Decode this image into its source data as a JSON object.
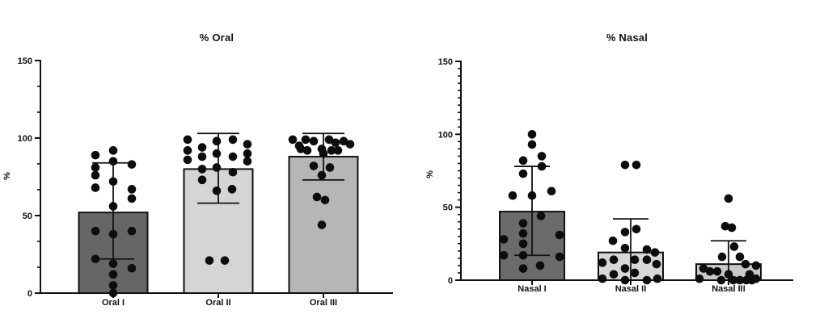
{
  "figure": {
    "background": "#ffffff",
    "axis_color": "#111111",
    "point_color": "#0d0d0d"
  },
  "chart_data": [
    {
      "type": "bar",
      "subtype": "bar-with-scatter-and-sd-error-bars",
      "title": "% Oral",
      "xlabel": "",
      "ylabel": "%",
      "ylim": [
        0,
        150
      ],
      "yticks": [
        0,
        50,
        100,
        150
      ],
      "minor_ticks_per_interval": 2,
      "grid": false,
      "legend": null,
      "categories": [
        "Oral I",
        "Oral II",
        "Oral III"
      ],
      "bar_fill_colors": [
        "#666666",
        "#d5d5d5",
        "#b6b6b6"
      ],
      "bars": [
        {
          "label": "Oral I",
          "mean": 52,
          "err_low": 22,
          "err_high": 84,
          "points": [
            [
              -22,
              89
            ],
            [
              0,
              92
            ],
            [
              -22,
              81
            ],
            [
              0,
              85
            ],
            [
              23,
              83
            ],
            [
              -22,
              76
            ],
            [
              -22,
              68
            ],
            [
              0,
              72
            ],
            [
              23,
              67
            ],
            [
              23,
              61
            ],
            [
              0,
              56
            ],
            [
              -22,
              40
            ],
            [
              0,
              38
            ],
            [
              23,
              40
            ],
            [
              -22,
              22
            ],
            [
              0,
              19
            ],
            [
              23,
              16
            ],
            [
              0,
              12
            ],
            [
              0,
              5
            ],
            [
              0,
              0
            ]
          ]
        },
        {
          "label": "Oral II",
          "mean": 80,
          "err_low": 58,
          "err_high": 103,
          "points": [
            [
              -38,
              99
            ],
            [
              -38,
              92
            ],
            [
              -38,
              86
            ],
            [
              -20,
              94
            ],
            [
              -20,
              88
            ],
            [
              -20,
              80
            ],
            [
              -2,
              98
            ],
            [
              -2,
              90
            ],
            [
              -2,
              81
            ],
            [
              18,
              99
            ],
            [
              18,
              88
            ],
            [
              18,
              78
            ],
            [
              36,
              96
            ],
            [
              36,
              90
            ],
            [
              36,
              85
            ],
            [
              -20,
              73
            ],
            [
              -2,
              66
            ],
            [
              17,
              67
            ],
            [
              -11,
              21
            ],
            [
              8,
              21
            ]
          ]
        },
        {
          "label": "Oral III",
          "mean": 88,
          "err_low": 73,
          "err_high": 103,
          "points": [
            [
              -38,
              99
            ],
            [
              -30,
              95
            ],
            [
              -22,
              99
            ],
            [
              -12,
              98
            ],
            [
              -2,
              93
            ],
            [
              7,
              99
            ],
            [
              15,
              97
            ],
            [
              25,
              98
            ],
            [
              33,
              96
            ],
            [
              -20,
              92
            ],
            [
              0,
              90
            ],
            [
              10,
              92
            ],
            [
              18,
              92
            ],
            [
              -28,
              93
            ],
            [
              -12,
              82
            ],
            [
              8,
              81
            ],
            [
              -2,
              76
            ],
            [
              -8,
              62
            ],
            [
              2,
              60
            ],
            [
              -2,
              44
            ]
          ]
        }
      ]
    },
    {
      "type": "bar",
      "subtype": "bar-with-scatter-and-sd-error-bars",
      "title": "% Nasal",
      "xlabel": "",
      "ylabel": "%",
      "ylim": [
        0,
        150
      ],
      "yticks": [
        0,
        50,
        100,
        150
      ],
      "minor_ticks_per_interval": 9,
      "grid": false,
      "legend": null,
      "categories": [
        "Nasal I",
        "Nasal II",
        "Nasal III"
      ],
      "bar_fill_colors": [
        "#6b6b6b",
        "#d8d8d8",
        "#c9c9c9"
      ],
      "bars": [
        {
          "label": "Nasal I",
          "mean": 47,
          "err_low": 17,
          "err_high": 78,
          "points": [
            [
              0,
              100
            ],
            [
              0,
              93
            ],
            [
              12,
              85
            ],
            [
              -11,
              82
            ],
            [
              12,
              78
            ],
            [
              -11,
              73
            ],
            [
              -24,
              58
            ],
            [
              0,
              58
            ],
            [
              24,
              61
            ],
            [
              11,
              44
            ],
            [
              -11,
              39
            ],
            [
              -11,
              32
            ],
            [
              34,
              31
            ],
            [
              -35,
              28
            ],
            [
              -11,
              25
            ],
            [
              -35,
              17
            ],
            [
              -11,
              17
            ],
            [
              34,
              16
            ],
            [
              -11,
              8
            ],
            [
              10,
              10
            ]
          ]
        },
        {
          "label": "Nasal II",
          "mean": 19,
          "err_low": null,
          "err_high": 42,
          "points": [
            [
              -7,
              79
            ],
            [
              7,
              79
            ],
            [
              -7,
              33
            ],
            [
              7,
              35
            ],
            [
              -22,
              27
            ],
            [
              -7,
              22
            ],
            [
              20,
              21
            ],
            [
              30,
              19
            ],
            [
              -35,
              12
            ],
            [
              -21,
              14
            ],
            [
              5,
              14
            ],
            [
              20,
              14
            ],
            [
              32,
              11
            ],
            [
              -35,
              1
            ],
            [
              -21,
              4
            ],
            [
              -7,
              8
            ],
            [
              5,
              5
            ],
            [
              20,
              0
            ],
            [
              -7,
              0
            ],
            [
              33,
              1
            ]
          ]
        },
        {
          "label": "Nasal III",
          "mean": 11,
          "err_low": null,
          "err_high": 27,
          "points": [
            [
              0,
              56
            ],
            [
              -4,
              37
            ],
            [
              4,
              36
            ],
            [
              7,
              23
            ],
            [
              -8,
              16
            ],
            [
              14,
              16
            ],
            [
              21,
              11
            ],
            [
              34,
              10
            ],
            [
              -31,
              8
            ],
            [
              -23,
              6
            ],
            [
              -14,
              6
            ],
            [
              0,
              4
            ],
            [
              -36,
              1
            ],
            [
              -9,
              0
            ],
            [
              6,
              0
            ],
            [
              14,
              0
            ],
            [
              22,
              0
            ],
            [
              29,
              0
            ],
            [
              34,
              1
            ],
            [
              26,
              4
            ]
          ]
        }
      ]
    }
  ]
}
